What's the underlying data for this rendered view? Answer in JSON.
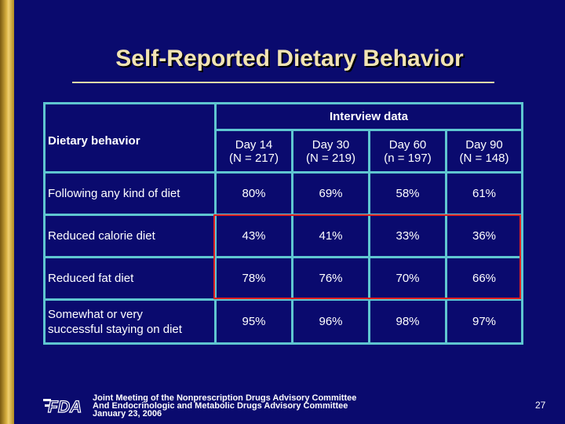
{
  "title": "Self-Reported Dietary Behavior",
  "table": {
    "group_header": "Interview data",
    "row_header": "Dietary behavior",
    "columns": [
      {
        "line1": "Day 14",
        "line2": "(N = 217)"
      },
      {
        "line1": "Day 30",
        "line2": "(N = 219)"
      },
      {
        "line1": "Day 60",
        "line2": "(n = 197)"
      },
      {
        "line1": "Day 90",
        "line2": "(N = 148)"
      }
    ],
    "rows": [
      {
        "label_line1": "Following any kind of diet",
        "label_line2": "",
        "values": [
          "80%",
          "69%",
          "58%",
          "61%"
        ]
      },
      {
        "label_line1": "Reduced calorie diet",
        "label_line2": "",
        "values": [
          "43%",
          "41%",
          "33%",
          "36%"
        ]
      },
      {
        "label_line1": "Reduced fat diet",
        "label_line2": "",
        "values": [
          "78%",
          "76%",
          "70%",
          "66%"
        ]
      },
      {
        "label_line1": "Somewhat or very",
        "label_line2": "successful staying on diet",
        "values": [
          "95%",
          "96%",
          "98%",
          "97%"
        ]
      }
    ]
  },
  "footer": {
    "logo_text": "FDA",
    "line1": "Joint Meeting of the Nonprescription Drugs Advisory Committee",
    "line2": "And Endocrinologic and Metabolic Drugs Advisory Committee",
    "line3": "January 23, 2006"
  },
  "page_number": "27",
  "colors": {
    "background": "#0a0a6e",
    "title": "#f2e4b4",
    "grid": "#5fc6d0",
    "highlight": "#e02020"
  }
}
